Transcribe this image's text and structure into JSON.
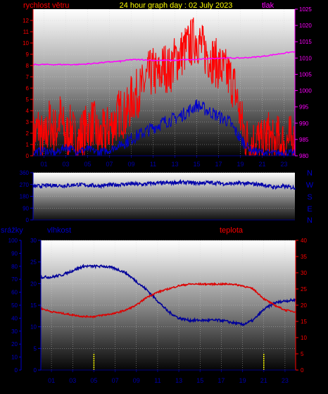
{
  "header": {
    "wind_label": "rychlost větru",
    "title": "24 hour graph day : 02 July 2023",
    "pressure_label": "tlak"
  },
  "colors": {
    "wind": "#ff0000",
    "wind_dark": "#0000cc",
    "pressure": "#ff00ff",
    "direction": "#0000aa",
    "humidity": "#000099",
    "temperature": "#dd0000",
    "rain": "#ffff00",
    "left_axis": "#ff0000",
    "right_axis_top": "#ff00ff",
    "left_axis_bottom": "#0000cc",
    "right_axis_bottom": "#ff0000",
    "title": "#ffff00"
  },
  "chart_data": [
    {
      "type": "line",
      "panel": "wind-pressure",
      "x_ticks": [
        "01",
        "03",
        "05",
        "07",
        "09",
        "11",
        "13",
        "15",
        "17",
        "19",
        "21",
        "23"
      ],
      "x_range": [
        0,
        24
      ],
      "left_axis": {
        "ticks": [
          0,
          1,
          2,
          3,
          4,
          5,
          6,
          7,
          8,
          9,
          10,
          11,
          12
        ],
        "range": [
          0,
          13
        ]
      },
      "right_axis": {
        "ticks": [
          980,
          985,
          990,
          995,
          1000,
          1005,
          1010,
          1015,
          1020,
          1025
        ],
        "range": [
          980,
          1025
        ]
      },
      "series": [
        {
          "name": "rychlost větru",
          "axis": "left",
          "x": [
            0,
            0.5,
            1,
            1.5,
            2,
            2.5,
            3,
            3.5,
            4,
            4.5,
            5,
            5.5,
            6,
            6.5,
            7,
            7.5,
            8,
            8.5,
            9,
            9.5,
            10,
            10.5,
            11,
            11.5,
            12,
            12.5,
            13,
            13.5,
            14,
            14.5,
            15,
            15.5,
            16,
            16.5,
            17,
            17.5,
            18,
            18.5,
            19,
            19.5,
            20,
            20.5,
            21,
            21.5,
            22,
            22.5,
            23,
            23.5,
            24
          ],
          "y": [
            1.5,
            2.5,
            1,
            3,
            2,
            3.5,
            1.5,
            2.5,
            1,
            2,
            2.5,
            3,
            1.5,
            2,
            2.5,
            3,
            4,
            3.5,
            5,
            5.5,
            6,
            7,
            7.5,
            7,
            8,
            7.5,
            8.5,
            9,
            9.5,
            10,
            10.5,
            9.5,
            9,
            8.5,
            8,
            7.5,
            7,
            6,
            3.5,
            1.5,
            1,
            1.5,
            1,
            2,
            1,
            1.5,
            1,
            1.5,
            1
          ]
        },
        {
          "name": "",
          "axis": "left",
          "x": [
            0,
            1,
            2,
            3,
            4,
            5,
            6,
            7,
            8,
            9,
            10,
            11,
            12,
            13,
            14,
            15,
            16,
            17,
            18,
            19,
            20,
            21,
            22,
            23,
            24
          ],
          "y": [
            0.3,
            0.5,
            0.2,
            0.8,
            0.4,
            0.6,
            0.3,
            0.5,
            1,
            1.5,
            2,
            2.5,
            3,
            3.3,
            3.8,
            4.5,
            4,
            3.5,
            3,
            1.5,
            0.5,
            0.3,
            0.2,
            0.3,
            0.2
          ]
        },
        {
          "name": "tlak",
          "axis": "right",
          "x": [
            0,
            1,
            2,
            3,
            4,
            5,
            6,
            7,
            8,
            9,
            10,
            11,
            12,
            13,
            14,
            15,
            16,
            17,
            18,
            19,
            20,
            21,
            22,
            23,
            24
          ],
          "y": [
            1008,
            1008,
            1008,
            1008,
            1008,
            1008.2,
            1008.5,
            1008.8,
            1009,
            1009.5,
            1009.5,
            1009.3,
            1009.3,
            1009.3,
            1009.5,
            1009.5,
            1009.8,
            1010,
            1010,
            1010,
            1010.2,
            1010.5,
            1011,
            1011.5,
            1012
          ]
        }
      ]
    },
    {
      "type": "line",
      "panel": "wind-direction",
      "x_range": [
        0,
        24
      ],
      "left_axis": {
        "ticks": [
          0,
          90,
          180,
          270,
          360
        ],
        "range": [
          0,
          360
        ]
      },
      "right_labels": [
        "N",
        "W",
        "S",
        "E",
        "N"
      ],
      "series": [
        {
          "name": "",
          "x": [
            0,
            1,
            2,
            3,
            4,
            5,
            6,
            7,
            8,
            9,
            10,
            11,
            12,
            13,
            14,
            15,
            16,
            17,
            18,
            19,
            20,
            21,
            22,
            23,
            24
          ],
          "y": [
            255,
            260,
            265,
            260,
            270,
            265,
            260,
            265,
            270,
            275,
            270,
            280,
            280,
            285,
            285,
            280,
            285,
            280,
            275,
            280,
            275,
            270,
            250,
            255,
            245
          ]
        }
      ]
    },
    {
      "type": "line",
      "panel": "rain-humidity-temperature",
      "x_ticks": [
        "01",
        "03",
        "05",
        "07",
        "09",
        "11",
        "13",
        "15",
        "17",
        "19",
        "21",
        "23"
      ],
      "x_range": [
        0,
        24
      ],
      "rain_axis": {
        "label": "srážky",
        "ticks": [
          0,
          10,
          20,
          30,
          40,
          50,
          60,
          70,
          80,
          90,
          100
        ],
        "range": [
          0,
          100
        ]
      },
      "humidity_axis": {
        "label": "vlhkost",
        "ticks": [
          0,
          5,
          10,
          15,
          20,
          25,
          30
        ],
        "range": [
          0,
          30
        ]
      },
      "temperature_axis": {
        "label": "teplota",
        "ticks": [
          0,
          5,
          10,
          15,
          20,
          25,
          30,
          35,
          40
        ],
        "range": [
          0,
          40
        ]
      },
      "series": [
        {
          "name": "vlhkost",
          "axis": "humidity",
          "x": [
            0,
            1,
            2,
            3,
            4,
            5,
            6,
            7,
            8,
            9,
            10,
            11,
            12,
            13,
            14,
            15,
            16,
            17,
            18,
            19,
            20,
            21,
            22,
            23,
            24
          ],
          "y": [
            21.5,
            21.5,
            22,
            23,
            24,
            24,
            24,
            23.5,
            22.5,
            20.5,
            18.5,
            16,
            13.5,
            12,
            11.5,
            11.5,
            11.5,
            11.5,
            11,
            10.5,
            11.5,
            14,
            15.5,
            16,
            16.2
          ]
        },
        {
          "name": "teplota",
          "axis": "temperature",
          "x": [
            0,
            1,
            2,
            3,
            4,
            5,
            6,
            7,
            8,
            9,
            10,
            11,
            12,
            13,
            14,
            15,
            16,
            17,
            18,
            19,
            20,
            21,
            22,
            23,
            24
          ],
          "y": [
            19,
            18,
            17.5,
            17,
            16.5,
            16.5,
            17,
            17.5,
            18.5,
            20,
            22.5,
            24,
            25,
            26,
            26.5,
            26.5,
            26.5,
            26.5,
            26.5,
            26,
            25,
            22,
            20,
            18.5,
            18
          ]
        },
        {
          "name": "srážky",
          "axis": "rain",
          "x": [
            5,
            21
          ],
          "y": [
            8,
            8
          ]
        }
      ]
    }
  ]
}
